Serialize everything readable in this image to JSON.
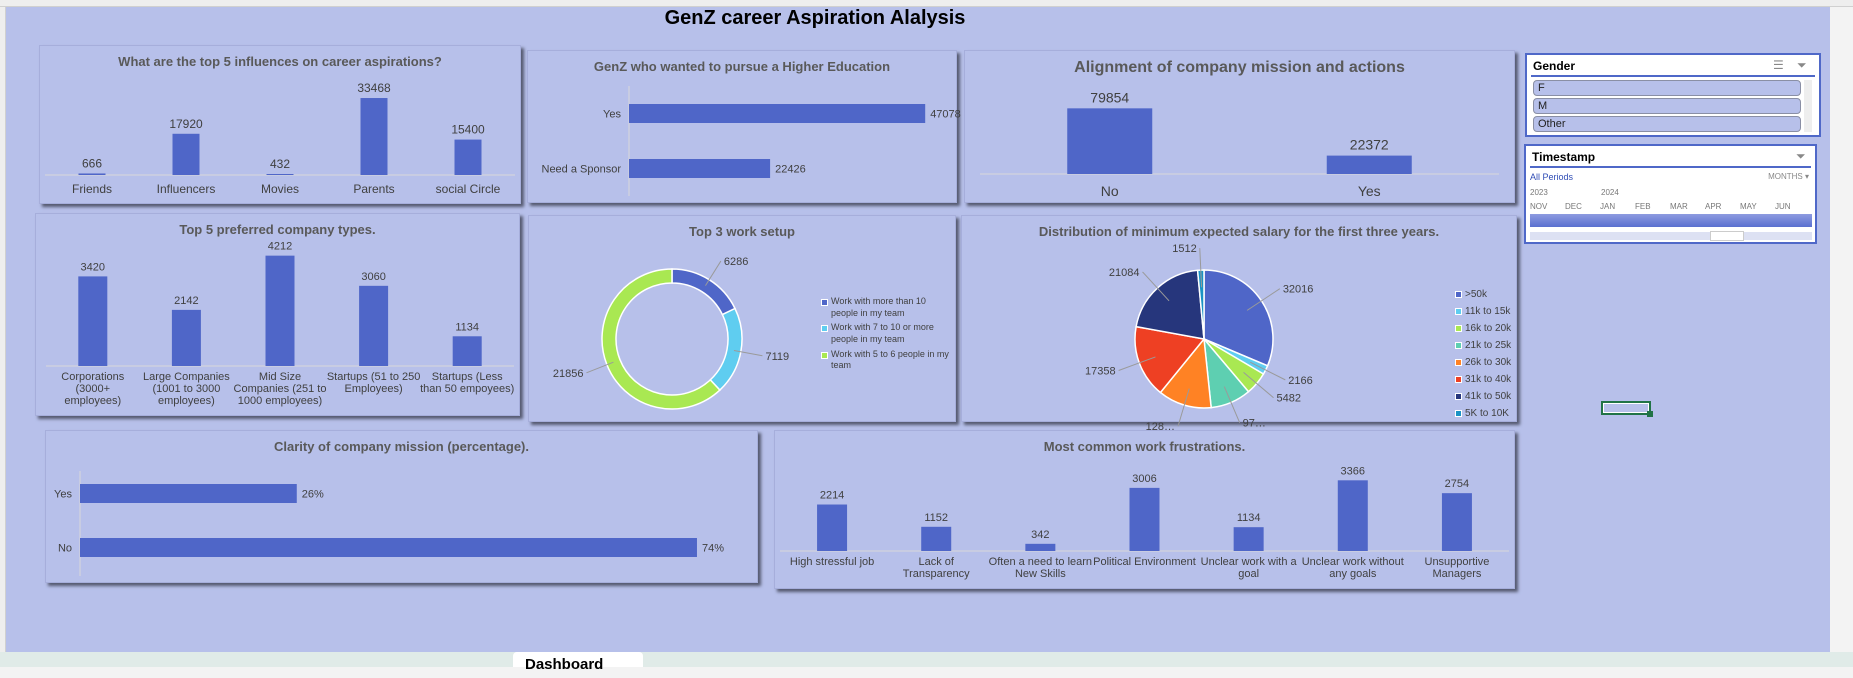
{
  "title": "GenZ career Aspiration Alalysis",
  "sheet_tab": "Dashboard",
  "colors": {
    "bar": "#4f66c8",
    "background": "#b7c0ea"
  },
  "slicers": {
    "gender": {
      "title": "Gender",
      "items": [
        "F",
        "M",
        "Other"
      ],
      "icons": [
        "multi-select-icon",
        "clear-filter-icon"
      ]
    },
    "timestamp": {
      "title": "Timestamp",
      "periods_label": "All Periods",
      "level": "MONTHS",
      "years": [
        "2023",
        "2024"
      ],
      "months": [
        "NOV",
        "DEC",
        "JAN",
        "FEB",
        "MAR",
        "APR",
        "MAY",
        "JUN"
      ]
    }
  },
  "chart_data": [
    {
      "id": "influences",
      "type": "bar",
      "title": "What are the top 5 influences on career aspirations?",
      "categories": [
        "Friends",
        "Influencers",
        "Movies",
        "Parents",
        "social Circle"
      ],
      "values": [
        666,
        17920,
        432,
        33468,
        15400
      ],
      "ylim": [
        0,
        40000
      ]
    },
    {
      "id": "higher_ed",
      "type": "bar",
      "orientation": "horizontal",
      "title": "GenZ who wanted to pursue a Higher Education",
      "categories": [
        "Yes",
        "Need a Sponsor"
      ],
      "values": [
        47078,
        22426
      ],
      "labels": [
        "47078",
        "22426"
      ],
      "xlim": [
        0,
        48000
      ]
    },
    {
      "id": "alignment",
      "type": "bar",
      "title": "Alignment of company mission and actions",
      "categories": [
        "No",
        "Yes"
      ],
      "values": [
        79854,
        22372
      ],
      "ylim": [
        0,
        90000
      ]
    },
    {
      "id": "company_types",
      "type": "bar",
      "title": "Top 5 preferred company types.",
      "categories": [
        [
          "Corporations",
          "(3000+",
          "employees)"
        ],
        [
          "Large Companies",
          "(1001 to 3000",
          "employees)"
        ],
        [
          "Mid Size",
          "Companies (251 to",
          "1000 employees)"
        ],
        [
          "Startups (51 to 250",
          "Employees)"
        ],
        [
          "Startups (Less",
          "than 50 empoyees)"
        ]
      ],
      "values": [
        3420,
        2142,
        4212,
        3060,
        1134
      ],
      "ylim": [
        0,
        5000
      ]
    },
    {
      "id": "work_setup",
      "type": "pie",
      "donut": true,
      "title": "Top 3 work setup",
      "categories": [
        "Work with more than 10 people in my team",
        "Work with 7 to 10 or more people in my team",
        "Work with 5 to 6 people in my team"
      ],
      "values": [
        6286,
        7119,
        21856
      ],
      "labels": [
        "6286",
        "7119",
        "21856"
      ],
      "colors": [
        "#4f66c8",
        "#5fcdf0",
        "#a9e852"
      ],
      "legend": "right"
    },
    {
      "id": "salary",
      "type": "pie",
      "title": "Distribution of minimum expected salary for the first three years.",
      "categories": [
        ">50k",
        "11k to 15k",
        "16k to 20k",
        "21k to 25k",
        "26k to 30k",
        "31k to 40k",
        "41k to 50k",
        "5K to 10K"
      ],
      "values": [
        32016,
        2166,
        5482,
        9700,
        12800,
        17358,
        21084,
        1512
      ],
      "labels": [
        "32016",
        "2166",
        "5482",
        "97…",
        "128…",
        "17358",
        "21084",
        "1512"
      ],
      "colors": [
        "#4f66c8",
        "#5fcdf0",
        "#a9e852",
        "#5ecfb1",
        "#ff8224",
        "#ee4023",
        "#26367c",
        "#1a93c4"
      ],
      "legend": "right"
    },
    {
      "id": "clarity",
      "type": "bar",
      "orientation": "horizontal",
      "title": "Clarity of company mission (percentage).",
      "categories": [
        "Yes",
        "No"
      ],
      "values": [
        26,
        74
      ],
      "labels": [
        "26%",
        "74%"
      ],
      "xlim": [
        0,
        80
      ]
    },
    {
      "id": "frustrations",
      "type": "bar",
      "title": "Most common work frustrations.",
      "categories": [
        [
          "High stressful job"
        ],
        [
          "Lack of",
          "Transparency"
        ],
        [
          "Often a need to learn",
          "New Skills"
        ],
        [
          "Political Environment"
        ],
        [
          "Unclear work with a",
          "goal"
        ],
        [
          "Unclear work without",
          "any goals"
        ],
        [
          "Unsupportive",
          "Managers"
        ]
      ],
      "values": [
        2214,
        1152,
        342,
        3006,
        1134,
        3366,
        2754
      ],
      "ylim": [
        0,
        4000
      ]
    }
  ]
}
